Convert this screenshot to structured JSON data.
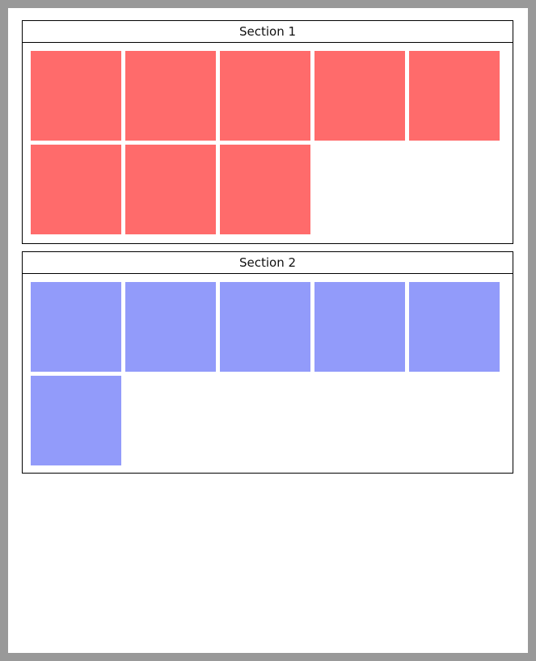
{
  "page": {
    "background_color": "#ffffff",
    "frame_color": "#999999",
    "border_color": "#000000"
  },
  "sections": [
    {
      "title": "Section 1",
      "tile_color": "#ff6b6b",
      "tile_count": 8,
      "tiles_per_row": 5,
      "tile_name": "section-1-tile"
    },
    {
      "title": "Section 2",
      "tile_color": "#929bfa",
      "tile_count": 6,
      "tiles_per_row": 5,
      "tile_name": "section-2-tile"
    }
  ]
}
